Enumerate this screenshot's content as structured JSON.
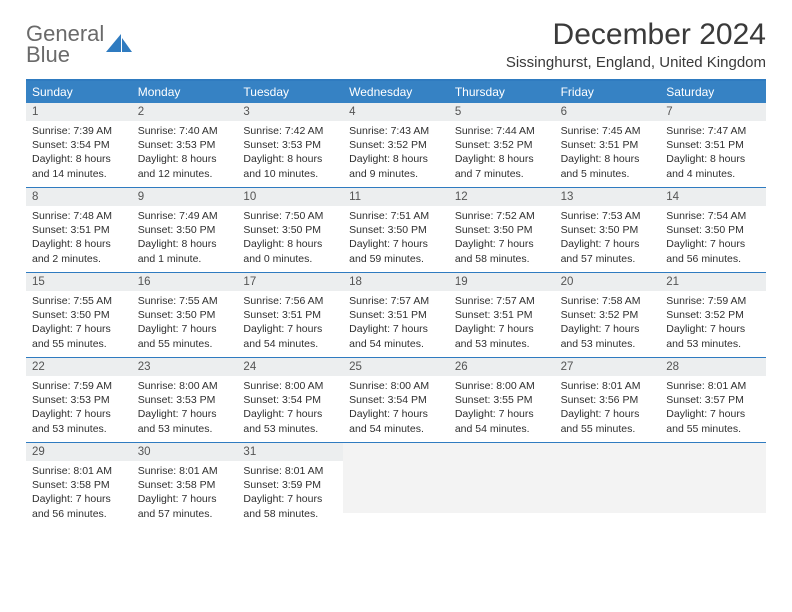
{
  "logo": {
    "line1": "General",
    "line2": "Blue"
  },
  "title": "December 2024",
  "location": "Sissinghurst, England, United Kingdom",
  "colors": {
    "header_bar": "#3682c4",
    "week_divider": "#2f7bc0",
    "daynum_bg": "#eceeef",
    "empty_bg": "#f3f3f3",
    "text": "#333333",
    "logo_gray": "#6a6a6a",
    "logo_blue": "#2f7bc0"
  },
  "day_names": [
    "Sunday",
    "Monday",
    "Tuesday",
    "Wednesday",
    "Thursday",
    "Friday",
    "Saturday"
  ],
  "weeks": [
    [
      {
        "n": "1",
        "sr": "Sunrise: 7:39 AM",
        "ss": "Sunset: 3:54 PM",
        "d1": "Daylight: 8 hours",
        "d2": "and 14 minutes."
      },
      {
        "n": "2",
        "sr": "Sunrise: 7:40 AM",
        "ss": "Sunset: 3:53 PM",
        "d1": "Daylight: 8 hours",
        "d2": "and 12 minutes."
      },
      {
        "n": "3",
        "sr": "Sunrise: 7:42 AM",
        "ss": "Sunset: 3:53 PM",
        "d1": "Daylight: 8 hours",
        "d2": "and 10 minutes."
      },
      {
        "n": "4",
        "sr": "Sunrise: 7:43 AM",
        "ss": "Sunset: 3:52 PM",
        "d1": "Daylight: 8 hours",
        "d2": "and 9 minutes."
      },
      {
        "n": "5",
        "sr": "Sunrise: 7:44 AM",
        "ss": "Sunset: 3:52 PM",
        "d1": "Daylight: 8 hours",
        "d2": "and 7 minutes."
      },
      {
        "n": "6",
        "sr": "Sunrise: 7:45 AM",
        "ss": "Sunset: 3:51 PM",
        "d1": "Daylight: 8 hours",
        "d2": "and 5 minutes."
      },
      {
        "n": "7",
        "sr": "Sunrise: 7:47 AM",
        "ss": "Sunset: 3:51 PM",
        "d1": "Daylight: 8 hours",
        "d2": "and 4 minutes."
      }
    ],
    [
      {
        "n": "8",
        "sr": "Sunrise: 7:48 AM",
        "ss": "Sunset: 3:51 PM",
        "d1": "Daylight: 8 hours",
        "d2": "and 2 minutes."
      },
      {
        "n": "9",
        "sr": "Sunrise: 7:49 AM",
        "ss": "Sunset: 3:50 PM",
        "d1": "Daylight: 8 hours",
        "d2": "and 1 minute."
      },
      {
        "n": "10",
        "sr": "Sunrise: 7:50 AM",
        "ss": "Sunset: 3:50 PM",
        "d1": "Daylight: 8 hours",
        "d2": "and 0 minutes."
      },
      {
        "n": "11",
        "sr": "Sunrise: 7:51 AM",
        "ss": "Sunset: 3:50 PM",
        "d1": "Daylight: 7 hours",
        "d2": "and 59 minutes."
      },
      {
        "n": "12",
        "sr": "Sunrise: 7:52 AM",
        "ss": "Sunset: 3:50 PM",
        "d1": "Daylight: 7 hours",
        "d2": "and 58 minutes."
      },
      {
        "n": "13",
        "sr": "Sunrise: 7:53 AM",
        "ss": "Sunset: 3:50 PM",
        "d1": "Daylight: 7 hours",
        "d2": "and 57 minutes."
      },
      {
        "n": "14",
        "sr": "Sunrise: 7:54 AM",
        "ss": "Sunset: 3:50 PM",
        "d1": "Daylight: 7 hours",
        "d2": "and 56 minutes."
      }
    ],
    [
      {
        "n": "15",
        "sr": "Sunrise: 7:55 AM",
        "ss": "Sunset: 3:50 PM",
        "d1": "Daylight: 7 hours",
        "d2": "and 55 minutes."
      },
      {
        "n": "16",
        "sr": "Sunrise: 7:55 AM",
        "ss": "Sunset: 3:50 PM",
        "d1": "Daylight: 7 hours",
        "d2": "and 55 minutes."
      },
      {
        "n": "17",
        "sr": "Sunrise: 7:56 AM",
        "ss": "Sunset: 3:51 PM",
        "d1": "Daylight: 7 hours",
        "d2": "and 54 minutes."
      },
      {
        "n": "18",
        "sr": "Sunrise: 7:57 AM",
        "ss": "Sunset: 3:51 PM",
        "d1": "Daylight: 7 hours",
        "d2": "and 54 minutes."
      },
      {
        "n": "19",
        "sr": "Sunrise: 7:57 AM",
        "ss": "Sunset: 3:51 PM",
        "d1": "Daylight: 7 hours",
        "d2": "and 53 minutes."
      },
      {
        "n": "20",
        "sr": "Sunrise: 7:58 AM",
        "ss": "Sunset: 3:52 PM",
        "d1": "Daylight: 7 hours",
        "d2": "and 53 minutes."
      },
      {
        "n": "21",
        "sr": "Sunrise: 7:59 AM",
        "ss": "Sunset: 3:52 PM",
        "d1": "Daylight: 7 hours",
        "d2": "and 53 minutes."
      }
    ],
    [
      {
        "n": "22",
        "sr": "Sunrise: 7:59 AM",
        "ss": "Sunset: 3:53 PM",
        "d1": "Daylight: 7 hours",
        "d2": "and 53 minutes."
      },
      {
        "n": "23",
        "sr": "Sunrise: 8:00 AM",
        "ss": "Sunset: 3:53 PM",
        "d1": "Daylight: 7 hours",
        "d2": "and 53 minutes."
      },
      {
        "n": "24",
        "sr": "Sunrise: 8:00 AM",
        "ss": "Sunset: 3:54 PM",
        "d1": "Daylight: 7 hours",
        "d2": "and 53 minutes."
      },
      {
        "n": "25",
        "sr": "Sunrise: 8:00 AM",
        "ss": "Sunset: 3:54 PM",
        "d1": "Daylight: 7 hours",
        "d2": "and 54 minutes."
      },
      {
        "n": "26",
        "sr": "Sunrise: 8:00 AM",
        "ss": "Sunset: 3:55 PM",
        "d1": "Daylight: 7 hours",
        "d2": "and 54 minutes."
      },
      {
        "n": "27",
        "sr": "Sunrise: 8:01 AM",
        "ss": "Sunset: 3:56 PM",
        "d1": "Daylight: 7 hours",
        "d2": "and 55 minutes."
      },
      {
        "n": "28",
        "sr": "Sunrise: 8:01 AM",
        "ss": "Sunset: 3:57 PM",
        "d1": "Daylight: 7 hours",
        "d2": "and 55 minutes."
      }
    ],
    [
      {
        "n": "29",
        "sr": "Sunrise: 8:01 AM",
        "ss": "Sunset: 3:58 PM",
        "d1": "Daylight: 7 hours",
        "d2": "and 56 minutes."
      },
      {
        "n": "30",
        "sr": "Sunrise: 8:01 AM",
        "ss": "Sunset: 3:58 PM",
        "d1": "Daylight: 7 hours",
        "d2": "and 57 minutes."
      },
      {
        "n": "31",
        "sr": "Sunrise: 8:01 AM",
        "ss": "Sunset: 3:59 PM",
        "d1": "Daylight: 7 hours",
        "d2": "and 58 minutes."
      },
      null,
      null,
      null,
      null
    ]
  ]
}
